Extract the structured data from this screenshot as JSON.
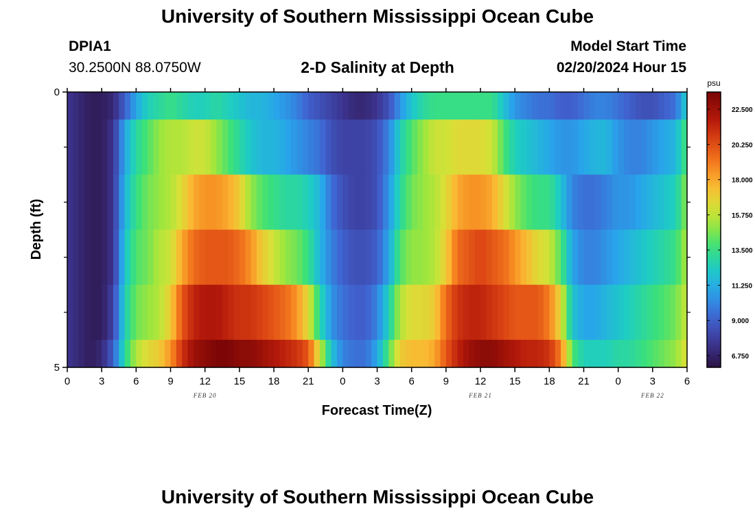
{
  "header": {
    "title": "University of Southern Mississippi Ocean Cube",
    "station_id": "DPIA1",
    "coords": "30.2500N  88.0750W",
    "subtitle": "2-D Salinity at Depth",
    "model_start_label": "Model Start Time",
    "model_start_value": "02/20/2024 Hour 15"
  },
  "footer": {
    "title": "University of Southern Mississippi Ocean Cube"
  },
  "chart_data": {
    "type": "heatmap",
    "title": "2-D Salinity at Depth",
    "xlabel": "Forecast Time(Z)",
    "ylabel": "Depth (ft)",
    "colorbar_unit": "psu",
    "colorbar_ticks": [
      "22.500",
      "20.250",
      "18.000",
      "15.750",
      "13.500",
      "11.250",
      "9.000",
      "6.750"
    ],
    "colorbar_tick_values": [
      22.5,
      20.25,
      18.0,
      15.75,
      13.5,
      11.25,
      9.0,
      6.75
    ],
    "value_range": [
      6.0,
      23.6
    ],
    "x_range_hours": [
      0,
      54
    ],
    "x_ticks": [
      0,
      3,
      6,
      9,
      12,
      15,
      18,
      21,
      24,
      27,
      30,
      33,
      36,
      39,
      42,
      45,
      48,
      51,
      54
    ],
    "x_tick_labels": [
      "0",
      "3",
      "6",
      "9",
      "12",
      "15",
      "18",
      "21",
      "0",
      "3",
      "6",
      "9",
      "12",
      "15",
      "18",
      "21",
      "0",
      "3",
      "6"
    ],
    "date_labels": [
      {
        "hour": 12,
        "label": "FEB 20"
      },
      {
        "hour": 36,
        "label": "FEB 21"
      },
      {
        "hour": 51,
        "label": "FEB 22"
      }
    ],
    "y_range": [
      0,
      5
    ],
    "y_ticks": [
      0,
      5
    ],
    "row_bounds": [
      0,
      0.5,
      1.5,
      2.5,
      3.5,
      4.5,
      5
    ],
    "keypoint_hours": [
      0,
      1,
      2,
      3,
      4,
      5,
      6,
      7,
      8,
      9,
      10,
      11,
      12,
      13,
      14,
      15,
      16,
      17,
      18,
      19,
      20,
      21,
      22,
      23,
      24,
      25,
      26,
      27,
      28,
      29,
      30,
      31,
      32,
      33,
      34,
      35,
      36,
      37,
      38,
      39,
      40,
      41,
      42,
      43,
      44,
      45,
      46,
      47,
      48,
      49,
      50,
      51,
      52,
      53,
      54
    ],
    "rows": [
      {
        "depth": "0",
        "values": [
          7.5,
          7.0,
          6.5,
          6.5,
          7.0,
          9.0,
          11.0,
          12.5,
          13.0,
          13.5,
          13.0,
          12.5,
          12.5,
          13.0,
          12.5,
          12.0,
          11.5,
          11.5,
          11.0,
          10.5,
          10.0,
          9.0,
          8.5,
          8.0,
          7.5,
          7.0,
          7.0,
          7.5,
          8.5,
          10.5,
          12.0,
          13.0,
          13.5,
          13.5,
          13.5,
          13.5,
          13.5,
          13.5,
          12.0,
          10.5,
          10.0,
          9.5,
          9.5,
          9.0,
          9.0,
          9.5,
          10.0,
          10.0,
          9.5,
          9.0,
          8.5,
          8.5,
          9.0,
          9.5,
          12.5
        ]
      },
      {
        "depth": "0.5",
        "values": [
          7.5,
          7.0,
          6.5,
          6.5,
          7.5,
          11.0,
          13.0,
          14.0,
          15.0,
          15.5,
          15.5,
          16.0,
          16.0,
          15.0,
          14.0,
          13.0,
          12.0,
          11.5,
          11.5,
          11.0,
          10.5,
          10.0,
          9.5,
          8.5,
          8.0,
          8.0,
          8.0,
          8.5,
          10.0,
          12.5,
          14.0,
          15.0,
          16.0,
          16.0,
          16.5,
          16.5,
          16.5,
          16.0,
          14.0,
          12.5,
          12.0,
          11.5,
          11.0,
          10.5,
          10.5,
          11.0,
          11.5,
          11.5,
          10.5,
          10.0,
          10.0,
          10.5,
          11.0,
          11.5,
          14.0
        ]
      },
      {
        "depth": "1.5",
        "values": [
          7.5,
          7.0,
          6.5,
          6.5,
          7.5,
          11.5,
          13.5,
          14.5,
          15.0,
          15.5,
          16.5,
          18.0,
          18.5,
          18.5,
          18.0,
          17.0,
          15.0,
          14.0,
          13.5,
          13.0,
          13.0,
          12.5,
          11.5,
          9.5,
          8.5,
          8.0,
          8.0,
          8.5,
          10.5,
          13.0,
          14.5,
          15.0,
          15.5,
          16.5,
          18.0,
          18.5,
          18.5,
          18.0,
          16.5,
          15.0,
          14.0,
          13.5,
          13.5,
          12.0,
          10.0,
          9.5,
          9.5,
          10.0,
          10.5,
          10.5,
          11.0,
          11.5,
          12.0,
          12.5,
          15.0
        ]
      },
      {
        "depth": "2.5",
        "values": [
          7.5,
          7.0,
          6.5,
          6.5,
          7.5,
          12.0,
          14.0,
          14.5,
          15.5,
          16.0,
          18.0,
          19.5,
          20.0,
          20.0,
          20.0,
          19.5,
          18.5,
          17.0,
          16.0,
          15.0,
          14.5,
          13.5,
          11.5,
          10.0,
          9.0,
          8.5,
          8.5,
          9.0,
          11.0,
          14.0,
          15.0,
          15.0,
          15.5,
          17.0,
          19.5,
          20.0,
          20.5,
          20.0,
          19.5,
          18.5,
          17.5,
          16.5,
          16.0,
          14.0,
          11.0,
          10.0,
          10.0,
          10.5,
          11.0,
          11.5,
          12.0,
          12.5,
          13.0,
          13.5,
          15.5
        ]
      },
      {
        "depth": "3.5",
        "values": [
          7.5,
          7.0,
          6.5,
          6.5,
          8.0,
          12.5,
          14.5,
          15.0,
          15.5,
          17.0,
          20.0,
          21.5,
          22.0,
          22.0,
          21.5,
          21.0,
          21.0,
          20.5,
          20.0,
          19.5,
          18.5,
          16.5,
          13.0,
          10.5,
          9.5,
          9.0,
          9.0,
          10.0,
          12.5,
          15.5,
          16.5,
          16.5,
          17.0,
          19.5,
          21.0,
          21.5,
          21.5,
          21.0,
          20.5,
          20.0,
          20.0,
          20.0,
          19.0,
          16.5,
          12.0,
          11.0,
          11.0,
          11.5,
          12.0,
          12.5,
          13.0,
          13.5,
          14.0,
          14.5,
          16.0
        ]
      },
      {
        "depth": "4.5",
        "values": [
          7.5,
          7.0,
          6.5,
          7.0,
          9.0,
          13.0,
          15.5,
          16.5,
          17.0,
          18.5,
          21.0,
          22.5,
          23.0,
          23.5,
          23.5,
          23.0,
          23.0,
          22.5,
          22.0,
          21.5,
          21.0,
          20.0,
          16.0,
          12.0,
          10.0,
          9.5,
          9.5,
          11.0,
          14.0,
          17.0,
          17.5,
          17.5,
          18.0,
          20.0,
          21.5,
          22.5,
          23.0,
          23.0,
          22.5,
          22.0,
          21.5,
          21.5,
          21.0,
          19.0,
          14.0,
          12.5,
          12.5,
          12.5,
          13.0,
          13.0,
          13.5,
          14.0,
          14.5,
          15.0,
          16.5
        ]
      }
    ]
  }
}
